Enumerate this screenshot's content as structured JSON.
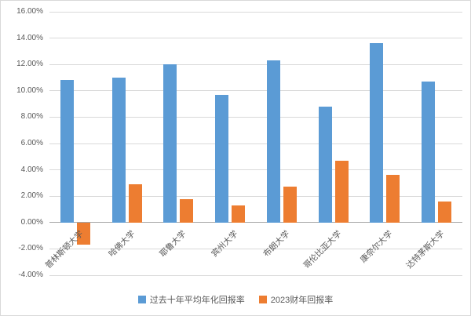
{
  "chart_data": {
    "type": "bar",
    "categories": [
      "普林斯顿大学",
      "哈佛大学",
      "耶鲁大学",
      "宾州大学",
      "布朗大学",
      "哥伦比亚大学",
      "康奈尔大学",
      "达特茅斯大学"
    ],
    "series": [
      {
        "name": "过去十年平均年化回报率",
        "color": "#5B9BD5",
        "values": [
          10.8,
          11.0,
          12.0,
          9.7,
          12.3,
          8.8,
          13.6,
          10.7
        ]
      },
      {
        "name": "2023财年回报率",
        "color": "#ED7D31",
        "values": [
          -1.7,
          2.9,
          1.8,
          1.3,
          2.7,
          4.7,
          3.6,
          1.6
        ]
      }
    ],
    "title": "",
    "xlabel": "",
    "ylabel": "",
    "ylim": [
      -4,
      16
    ],
    "ytick_step": 2,
    "ytick_suffix": "%",
    "ytick_decimals": 2,
    "grid": true,
    "legend_position": "bottom",
    "colors": {
      "gridline": "#d9d9d9",
      "zero_axis": "#a6a6a6",
      "tick_text": "#595959",
      "background": "#ffffff"
    }
  }
}
